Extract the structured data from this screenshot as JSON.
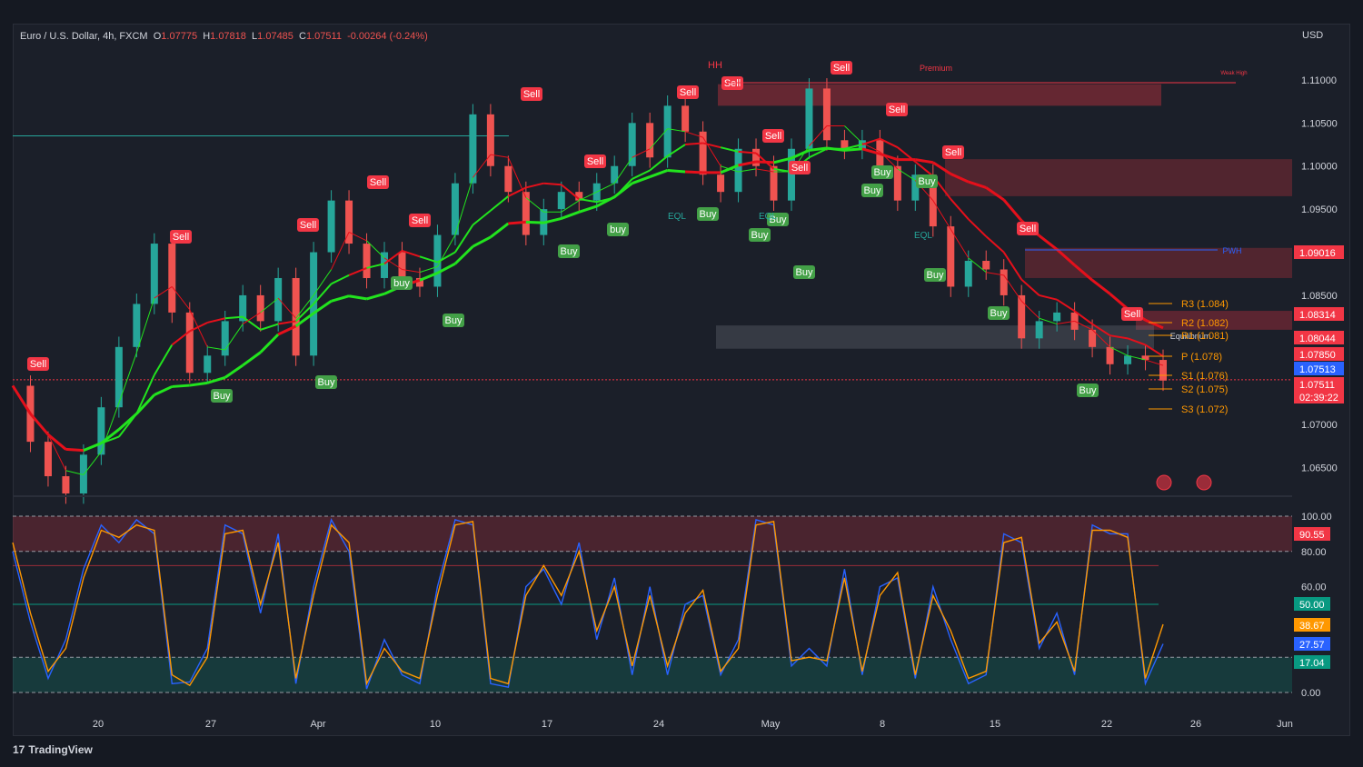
{
  "header": {
    "symbol": "Euro / U.S. Dollar, 4h, FXCM",
    "open_label": "O",
    "open": "1.07775",
    "high_label": "H",
    "high": "1.07818",
    "low_label": "L",
    "low": "1.07485",
    "close_label": "C",
    "close": "1.07511",
    "change": "-0.00264 (-0.24%)"
  },
  "currency": "USD",
  "brand": "TradingView",
  "colors": {
    "up": "#26a69a",
    "down": "#ef5350",
    "fastMA": "#22e41e",
    "slowMA": "#e5101b",
    "sell": "#f23645",
    "buy": "#43a047"
  },
  "chart_data": [
    {
      "type": "line",
      "title": "Euro / U.S. Dollar, 4h, FXCM",
      "x_axis_ticks": [
        "20",
        "27",
        "Apr",
        "10",
        "17",
        "24",
        "May",
        "8",
        "15",
        "22",
        "26",
        "Jun"
      ],
      "y_ticks": [
        "1.11000",
        "1.10500",
        "1.10000",
        "1.09500",
        "1.08500",
        "1.07000",
        "1.06500"
      ],
      "ylim": [
        1.062,
        1.114
      ],
      "series": [
        {
          "name": "",
          "color": "#d1d4dc",
          "x": [
            0,
            4,
            8,
            12,
            16,
            20,
            24,
            28,
            32,
            36,
            40,
            44,
            48,
            52,
            56,
            60,
            64,
            68,
            72,
            76,
            80,
            84,
            88,
            92,
            96,
            100,
            104,
            108,
            112,
            116,
            120,
            124,
            128,
            132,
            136,
            140,
            144,
            148,
            152,
            156,
            160,
            164,
            168,
            172,
            176,
            180,
            184,
            188,
            192,
            196,
            200,
            204,
            208,
            212,
            216,
            220,
            224,
            228,
            232,
            236,
            240,
            244,
            248,
            252,
            256,
            260
          ],
          "y": [
            1.0745,
            1.068,
            1.064,
            1.062,
            1.0665,
            1.072,
            1.079,
            1.084,
            1.091,
            1.083,
            1.076,
            1.078,
            1.082,
            1.085,
            1.082,
            1.087,
            1.078,
            1.09,
            1.096,
            1.091,
            1.087,
            1.09,
            1.087,
            1.086,
            1.092,
            1.098,
            1.106,
            1.1,
            1.097,
            1.092,
            1.095,
            1.097,
            1.096,
            1.098,
            1.1,
            1.105,
            1.101,
            1.107,
            1.104,
            1.099,
            1.097,
            1.102,
            1.1,
            1.096,
            1.102,
            1.109,
            1.103,
            1.102,
            1.103,
            1.1,
            1.096,
            1.099,
            1.093,
            1.086,
            1.089,
            1.088,
            1.085,
            1.08,
            1.082,
            1.083,
            1.081,
            1.079,
            1.077,
            1.078,
            1.0775,
            1.0751
          ]
        }
      ],
      "annotations": {
        "sell_labels": [
          "Sell",
          "Sell",
          "Sell",
          "Sell",
          "Sell",
          "Sell",
          "Sell",
          "Sell",
          "Sell",
          "Sell",
          "Sell",
          "Sell",
          "Sell",
          "Sell",
          "Sell",
          "Sell"
        ],
        "buy_labels": [
          "Buy",
          "Buy",
          "Buy",
          "buy",
          "Buy",
          "Buy",
          "Buy",
          "buy",
          "Buy",
          "Buy",
          "Buy",
          "Buy",
          "Buy",
          "Buy",
          "Buy",
          "Buy"
        ],
        "zone_labels": [
          "HH",
          "Premium",
          "EQL",
          "EQL",
          "EQL",
          "Equilibrium",
          "Weak High",
          "PWH"
        ],
        "pivots": [
          "R3 (1.084)",
          "R2 (1.082)",
          "R1 (1.081)",
          "P (1.078)",
          "S1 (1.076)",
          "S2 (1.075)",
          "S3 (1.072)"
        ]
      },
      "price_tags": [
        {
          "value": "1.09016",
          "color": "#f23645"
        },
        {
          "value": "1.08314",
          "color": "#f23645"
        },
        {
          "value": "1.08044",
          "color": "#f23645"
        },
        {
          "value": "1.07850",
          "color": "#f23645"
        },
        {
          "value": "1.07513",
          "color": "#2962ff"
        },
        {
          "value": "1.07511",
          "color": "#f23645"
        },
        {
          "value": "02:39:22",
          "color": "#f23645"
        }
      ],
      "grid": false
    },
    {
      "type": "line",
      "title": "",
      "y_ticks": [
        "100.00",
        "80.00",
        "60.00",
        "0.00"
      ],
      "ylim": [
        0,
        100
      ],
      "overbought": 80,
      "oversold": 20,
      "midline": 50,
      "series": [
        {
          "name": "",
          "color": "#2962ff",
          "x": [
            0,
            4,
            8,
            12,
            16,
            20,
            24,
            28,
            32,
            36,
            40,
            44,
            48,
            52,
            56,
            60,
            64,
            68,
            72,
            76,
            80,
            84,
            88,
            92,
            96,
            100,
            104,
            108,
            112,
            116,
            120,
            124,
            128,
            132,
            136,
            140,
            144,
            148,
            152,
            156,
            160,
            164,
            168,
            172,
            176,
            180,
            184,
            188,
            192,
            196,
            200,
            204,
            208,
            212,
            216,
            220,
            224,
            228,
            232,
            236,
            240,
            244,
            248,
            252,
            256,
            260
          ],
          "y": [
            80,
            40,
            8,
            30,
            70,
            95,
            85,
            98,
            90,
            5,
            6,
            25,
            95,
            90,
            45,
            90,
            5,
            60,
            98,
            80,
            2,
            30,
            10,
            5,
            60,
            98,
            95,
            5,
            3,
            60,
            70,
            50,
            85,
            30,
            65,
            10,
            60,
            10,
            50,
            55,
            10,
            30,
            98,
            95,
            15,
            25,
            15,
            70,
            10,
            60,
            65,
            8,
            60,
            30,
            5,
            10,
            90,
            85,
            25,
            45,
            10,
            95,
            90,
            90,
            5,
            27.57
          ]
        },
        {
          "name": "",
          "color": "#ff9800",
          "x": [
            0,
            4,
            8,
            12,
            16,
            20,
            24,
            28,
            32,
            36,
            40,
            44,
            48,
            52,
            56,
            60,
            64,
            68,
            72,
            76,
            80,
            84,
            88,
            92,
            96,
            100,
            104,
            108,
            112,
            116,
            120,
            124,
            128,
            132,
            136,
            140,
            144,
            148,
            152,
            156,
            160,
            164,
            168,
            172,
            176,
            180,
            184,
            188,
            192,
            196,
            200,
            204,
            208,
            212,
            216,
            220,
            224,
            228,
            232,
            236,
            240,
            244,
            248,
            252,
            256,
            260
          ],
          "y": [
            85,
            45,
            12,
            25,
            65,
            92,
            88,
            95,
            92,
            10,
            4,
            20,
            90,
            92,
            50,
            85,
            8,
            55,
            95,
            85,
            5,
            25,
            12,
            8,
            55,
            95,
            97,
            8,
            5,
            55,
            72,
            55,
            80,
            35,
            60,
            15,
            55,
            15,
            45,
            58,
            12,
            25,
            95,
            97,
            18,
            20,
            18,
            65,
            12,
            55,
            68,
            10,
            55,
            35,
            8,
            12,
            85,
            88,
            28,
            40,
            12,
            92,
            92,
            88,
            8,
            38.67
          ]
        }
      ],
      "value_tags": [
        {
          "value": "90.55",
          "color": "#f23645"
        },
        {
          "value": "50.00",
          "color": "#089981"
        },
        {
          "value": "38.67",
          "color": "#ff9800"
        },
        {
          "value": "27.57",
          "color": "#2962ff"
        },
        {
          "value": "17.04",
          "color": "#089981"
        }
      ]
    }
  ]
}
